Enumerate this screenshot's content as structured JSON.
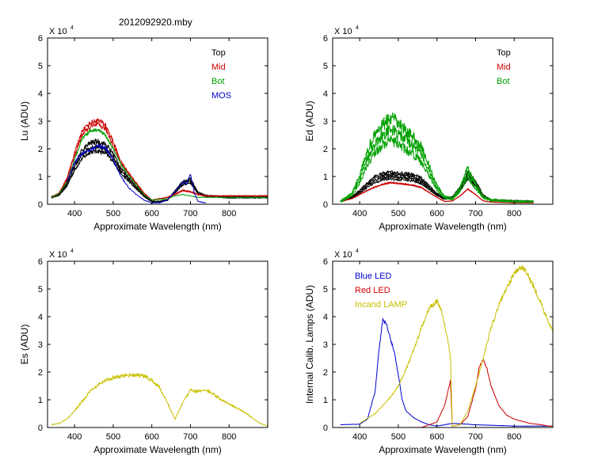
{
  "figure_title": "2012092920.mby",
  "chart_data": [
    {
      "type": "line",
      "id": "lu",
      "title": "",
      "xlabel": "Approximate Wavelength (nm)",
      "ylabel": "Lu (ADU)",
      "scale_label": "X 10",
      "scale_exp": "4",
      "xlim": [
        330,
        900
      ],
      "ylim": [
        0,
        6
      ],
      "xticks": [
        400,
        500,
        600,
        700,
        800
      ],
      "yticks": [
        0,
        1,
        2,
        3,
        4,
        5,
        6
      ],
      "legend_position": "top-right",
      "legend": [
        {
          "label": "Top",
          "color": "#000000"
        },
        {
          "label": "Mid",
          "color": "#cc0000"
        },
        {
          "label": "Bot",
          "color": "#00a000"
        },
        {
          "label": "MOS",
          "color": "#0000cc"
        }
      ],
      "series": [
        {
          "name": "Top",
          "color": "#000000",
          "spread": 0.12,
          "copies": 3,
          "x": [
            340,
            360,
            380,
            400,
            420,
            440,
            460,
            480,
            500,
            520,
            540,
            560,
            580,
            600,
            620,
            640,
            660,
            680,
            700,
            720,
            740,
            800,
            900
          ],
          "y": [
            0.25,
            0.35,
            0.7,
            1.35,
            1.8,
            2.05,
            2.1,
            2.0,
            1.7,
            1.2,
            0.9,
            0.6,
            0.3,
            0.1,
            0.1,
            0.15,
            0.45,
            0.75,
            0.85,
            0.4,
            0.3,
            0.25,
            0.25
          ]
        },
        {
          "name": "Mid",
          "color": "#cc0000",
          "spread": 0.08,
          "copies": 2,
          "x": [
            340,
            360,
            380,
            400,
            420,
            440,
            460,
            480,
            500,
            520,
            540,
            560,
            580,
            600,
            640,
            660,
            680,
            700,
            720,
            740,
            800,
            900
          ],
          "y": [
            0.25,
            0.4,
            0.9,
            1.8,
            2.6,
            2.85,
            2.95,
            2.8,
            2.2,
            1.5,
            1.1,
            0.75,
            0.4,
            0.15,
            0.25,
            0.35,
            0.5,
            0.45,
            0.35,
            0.3,
            0.3,
            0.3
          ]
        },
        {
          "name": "Bot",
          "color": "#00a000",
          "spread": 0.06,
          "copies": 1,
          "x": [
            340,
            360,
            380,
            400,
            420,
            440,
            460,
            480,
            500,
            520,
            540,
            560,
            580,
            600,
            640,
            660,
            680,
            700,
            720,
            740,
            900
          ],
          "y": [
            0.25,
            0.38,
            0.8,
            1.6,
            2.4,
            2.65,
            2.7,
            2.5,
            2.0,
            1.45,
            1.05,
            0.7,
            0.35,
            0.15,
            0.2,
            0.3,
            0.35,
            0.3,
            0.25,
            0.25,
            0.25
          ]
        },
        {
          "name": "MOS",
          "color": "#0000cc",
          "spread": 0.08,
          "copies": 1,
          "x": [
            380,
            400,
            420,
            440,
            460,
            480,
            500,
            520,
            540,
            560,
            580,
            600,
            620,
            640,
            660,
            680,
            690,
            700,
            710,
            720,
            740
          ],
          "y": [
            0.8,
            1.5,
            1.85,
            1.95,
            2.1,
            2.05,
            1.6,
            1.0,
            0.6,
            0.35,
            0.15,
            0.05,
            0.05,
            0.15,
            0.45,
            0.8,
            0.75,
            1.1,
            0.4,
            0.1,
            0.05
          ]
        }
      ]
    },
    {
      "type": "line",
      "id": "ed",
      "title": "",
      "xlabel": "Approximate Wavelength (nm)",
      "ylabel": "Ed  (ADU)",
      "scale_label": "X 10",
      "scale_exp": "4",
      "xlim": [
        330,
        900
      ],
      "ylim": [
        0,
        6
      ],
      "xticks": [
        400,
        500,
        600,
        700,
        800
      ],
      "yticks": [
        0,
        1,
        2,
        3,
        4,
        5,
        6
      ],
      "legend_position": "top-right",
      "legend": [
        {
          "label": "Top",
          "color": "#000000"
        },
        {
          "label": "Mid",
          "color": "#cc0000"
        },
        {
          "label": "Bot",
          "color": "#00a000"
        }
      ],
      "series": [
        {
          "name": "Top",
          "color": "#000000",
          "spread": 0.12,
          "copies": 4,
          "x": [
            350,
            380,
            400,
            420,
            440,
            460,
            480,
            500,
            520,
            540,
            560,
            580,
            600,
            620,
            640,
            660,
            680,
            700,
            720,
            740,
            800,
            850
          ],
          "y": [
            0.1,
            0.25,
            0.45,
            0.7,
            0.9,
            1.0,
            1.05,
            1.0,
            1.0,
            0.95,
            0.85,
            0.6,
            0.35,
            0.2,
            0.25,
            0.55,
            1.05,
            0.75,
            0.3,
            0.15,
            0.12,
            0.1
          ]
        },
        {
          "name": "Mid",
          "color": "#cc0000",
          "spread": 0.05,
          "copies": 2,
          "x": [
            350,
            380,
            400,
            420,
            440,
            460,
            480,
            500,
            520,
            540,
            560,
            580,
            600,
            620,
            640,
            660,
            680,
            700,
            720,
            740,
            800,
            850
          ],
          "y": [
            0.1,
            0.2,
            0.35,
            0.5,
            0.62,
            0.72,
            0.78,
            0.75,
            0.72,
            0.68,
            0.6,
            0.42,
            0.25,
            0.1,
            0.12,
            0.3,
            0.55,
            0.35,
            0.12,
            0.08,
            0.05,
            0.05
          ]
        },
        {
          "name": "Bot",
          "color": "#00a000",
          "spread": 0.22,
          "copies": 3,
          "x": [
            350,
            380,
            400,
            420,
            440,
            460,
            480,
            500,
            520,
            540,
            560,
            580,
            600,
            620,
            640,
            660,
            680,
            700,
            720,
            740,
            800,
            850
          ],
          "y": [
            0.1,
            0.35,
            0.9,
            1.7,
            2.2,
            2.5,
            2.7,
            2.55,
            2.3,
            2.1,
            1.8,
            1.2,
            0.6,
            0.25,
            0.2,
            0.55,
            1.15,
            0.65,
            0.25,
            0.15,
            0.1,
            0.1
          ]
        }
      ]
    },
    {
      "type": "line",
      "id": "es",
      "title": "",
      "xlabel": "Approximate Wavelength (nm)",
      "ylabel": "Es  (ADU)",
      "scale_label": "X 10",
      "scale_exp": "4",
      "xlim": [
        330,
        900
      ],
      "ylim": [
        0,
        6
      ],
      "xticks": [
        400,
        500,
        600,
        700,
        800
      ],
      "yticks": [
        0,
        1,
        2,
        3,
        4,
        5,
        6
      ],
      "legend_position": "none",
      "legend": [],
      "series": [
        {
          "name": "Es",
          "color": "#c8c000",
          "spread": 0.1,
          "copies": 1,
          "x": [
            340,
            360,
            380,
            400,
            420,
            440,
            460,
            480,
            500,
            520,
            540,
            560,
            580,
            600,
            620,
            640,
            660,
            680,
            700,
            720,
            740,
            760,
            780,
            800,
            820,
            840,
            860,
            880,
            900
          ],
          "y": [
            0.1,
            0.15,
            0.3,
            0.6,
            0.95,
            1.3,
            1.55,
            1.7,
            1.8,
            1.85,
            1.9,
            1.9,
            1.85,
            1.7,
            1.45,
            0.9,
            0.3,
            0.9,
            1.35,
            1.3,
            1.35,
            1.2,
            1.0,
            0.85,
            0.7,
            0.55,
            0.35,
            0.15,
            0.05
          ]
        }
      ]
    },
    {
      "type": "line",
      "id": "calib",
      "title": "",
      "xlabel": "Approximate Wavelength (nm)",
      "ylabel": "Internal Calib. Lamps (ADU)",
      "scale_label": "X 10",
      "scale_exp": "4",
      "xlim": [
        330,
        900
      ],
      "ylim": [
        0,
        6
      ],
      "xticks": [
        400,
        500,
        600,
        700,
        800
      ],
      "yticks": [
        0,
        1,
        2,
        3,
        4,
        5,
        6
      ],
      "legend_position": "top-left",
      "legend": [
        {
          "label": "Blue LED",
          "color": "#0000cc"
        },
        {
          "label": "Red LED",
          "color": "#cc0000"
        },
        {
          "label": "Incand LAMP",
          "color": "#c8c000"
        }
      ],
      "series": [
        {
          "name": "Blue LED",
          "color": "#0000cc",
          "spread": 0.04,
          "copies": 1,
          "x": [
            350,
            400,
            420,
            440,
            450,
            460,
            470,
            480,
            490,
            500,
            510,
            520,
            540,
            560,
            580,
            600,
            640,
            700,
            800,
            900
          ],
          "y": [
            0.1,
            0.12,
            0.3,
            1.3,
            2.8,
            3.9,
            3.7,
            3.2,
            2.7,
            1.9,
            1.0,
            0.6,
            0.35,
            0.2,
            0.1,
            0.05,
            0.15,
            0.1,
            0.05,
            0.05
          ]
        },
        {
          "name": "Red LED",
          "color": "#cc0000",
          "spread": 0.04,
          "copies": 1,
          "x": [
            510,
            560,
            600,
            620,
            630,
            635,
            640,
            660,
            680,
            700,
            710,
            720,
            730,
            740,
            760,
            780,
            800,
            840,
            870,
            890,
            900
          ],
          "y": [
            0.0,
            0.0,
            0.2,
            0.8,
            1.4,
            1.7,
            0.05,
            0.1,
            0.4,
            1.4,
            2.2,
            2.45,
            2.1,
            1.5,
            0.8,
            0.45,
            0.3,
            0.15,
            0.1,
            0.05,
            0.05
          ]
        },
        {
          "name": "Incand LAMP",
          "color": "#c8c000",
          "spread": 0.05,
          "copies": 1,
          "x": [
            400,
            440,
            480,
            500,
            520,
            540,
            560,
            580,
            600,
            610,
            620,
            630,
            635,
            640,
            660,
            680,
            700,
            720,
            740,
            760,
            780,
            800,
            820,
            840,
            860,
            880,
            900
          ],
          "y": [
            0.15,
            0.5,
            1.1,
            1.5,
            2.1,
            2.8,
            3.6,
            4.3,
            4.55,
            4.3,
            3.7,
            3.0,
            2.5,
            0.05,
            0.1,
            0.6,
            1.5,
            2.5,
            3.6,
            4.4,
            5.0,
            5.6,
            5.8,
            5.4,
            4.8,
            4.1,
            3.5
          ]
        }
      ]
    }
  ]
}
